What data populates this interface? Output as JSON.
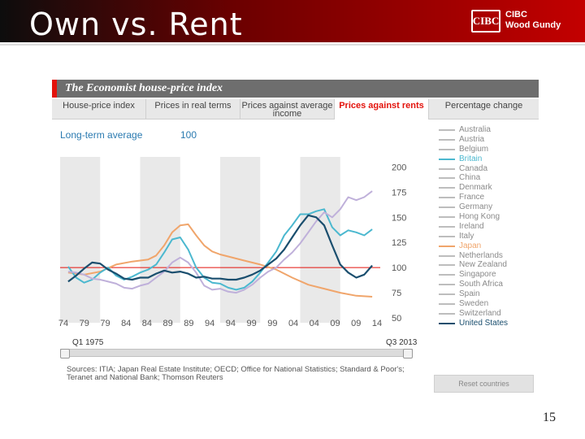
{
  "slide": {
    "title": "Own vs. Rent",
    "logo_mark": "CIBC",
    "logo_line1": "CIBC",
    "logo_line2": "Wood Gundy",
    "page_number": "15"
  },
  "widget": {
    "title": "The Economist house-price index",
    "tabs": [
      {
        "label": "House-price index",
        "active": false
      },
      {
        "label": "Prices in real terms",
        "active": false
      },
      {
        "label": "Prices against average income",
        "active": false
      },
      {
        "label": "Prices against rents",
        "active": true
      },
      {
        "label": "Percentage change",
        "active": false
      }
    ],
    "long_term_label": "Long-term average",
    "long_term_value": "100",
    "timeline_start": "Q1 1975",
    "timeline_end": "Q3 2013",
    "sources": "Sources: ITIA; Japan Real Estate Institute; OECD; Office for National Statistics; Standard & Poor's; Teranet and National Bank; Thomson Reuters",
    "reset_label": "Reset countries",
    "legend": [
      {
        "name": "Australia",
        "color": "#bdbdbd",
        "active": false
      },
      {
        "name": "Austria",
        "color": "#bdbdbd",
        "active": false
      },
      {
        "name": "Belgium",
        "color": "#bdbdbd",
        "active": false
      },
      {
        "name": "Britain",
        "color": "#4bb8cf",
        "active": true
      },
      {
        "name": "Canada",
        "color": "#bdbdbd",
        "active": false
      },
      {
        "name": "China",
        "color": "#bdbdbd",
        "active": false
      },
      {
        "name": "Denmark",
        "color": "#bdbdbd",
        "active": false
      },
      {
        "name": "France",
        "color": "#bdbdbd",
        "active": false
      },
      {
        "name": "Germany",
        "color": "#bdbdbd",
        "active": false
      },
      {
        "name": "Hong Kong",
        "color": "#bdbdbd",
        "active": false
      },
      {
        "name": "Ireland",
        "color": "#bdbdbd",
        "active": false
      },
      {
        "name": "Italy",
        "color": "#bdbdbd",
        "active": false
      },
      {
        "name": "Japan",
        "color": "#f0a56b",
        "active": true
      },
      {
        "name": "Netherlands",
        "color": "#bdbdbd",
        "active": false
      },
      {
        "name": "New Zealand",
        "color": "#bdbdbd",
        "active": false
      },
      {
        "name": "Singapore",
        "color": "#bdbdbd",
        "active": false
      },
      {
        "name": "South Africa",
        "color": "#bdbdbd",
        "active": false
      },
      {
        "name": "Spain",
        "color": "#bdbdbd",
        "active": false
      },
      {
        "name": "Sweden",
        "color": "#bdbdbd",
        "active": false
      },
      {
        "name": "Switzerland",
        "color": "#bdbdbd",
        "active": false
      },
      {
        "name": "United States",
        "color": "#1a4e6e",
        "active": true
      }
    ]
  },
  "chart_data": {
    "type": "line",
    "title": "The Economist house-price index",
    "subtitle": "Prices against rents",
    "xlabel": "",
    "ylabel": "",
    "xlim": [
      1974,
      2014
    ],
    "ylim": [
      50,
      210
    ],
    "y_ticks": [
      50,
      75,
      100,
      125,
      150,
      175,
      200
    ],
    "x_tick_labels": [
      "74",
      "79",
      "79",
      "84",
      "84",
      "89",
      "89",
      "94",
      "94",
      "99",
      "99",
      "04",
      "04",
      "09",
      "09",
      "14"
    ],
    "reference_line": {
      "label": "Long-term average",
      "value": 100,
      "color": "#e3120b"
    },
    "shaded_bands": [
      [
        1974,
        1979
      ],
      [
        1984,
        1989
      ],
      [
        1994,
        1999
      ],
      [
        2004,
        2009
      ]
    ],
    "grid": false,
    "legend_position": "right",
    "series": [
      {
        "name": "Japan",
        "color": "#f0a56b",
        "points": [
          [
            1975,
            95
          ],
          [
            1977,
            93
          ],
          [
            1979,
            96
          ],
          [
            1981,
            103
          ],
          [
            1983,
            106
          ],
          [
            1985,
            108
          ],
          [
            1986,
            112
          ],
          [
            1987,
            122
          ],
          [
            1988,
            135
          ],
          [
            1989,
            142
          ],
          [
            1990,
            143
          ],
          [
            1991,
            132
          ],
          [
            1992,
            122
          ],
          [
            1993,
            116
          ],
          [
            1994,
            113
          ],
          [
            1995,
            111
          ],
          [
            1997,
            107
          ],
          [
            1999,
            103
          ],
          [
            2001,
            98
          ],
          [
            2003,
            90
          ],
          [
            2005,
            83
          ],
          [
            2007,
            79
          ],
          [
            2009,
            75
          ],
          [
            2011,
            72
          ],
          [
            2013,
            71
          ]
        ]
      },
      {
        "name": "Britain",
        "color": "#4bb8cf",
        "points": [
          [
            1975,
            101
          ],
          [
            1976,
            90
          ],
          [
            1977,
            85
          ],
          [
            1978,
            88
          ],
          [
            1979,
            95
          ],
          [
            1980,
            100
          ],
          [
            1981,
            92
          ],
          [
            1982,
            88
          ],
          [
            1983,
            91
          ],
          [
            1984,
            95
          ],
          [
            1985,
            98
          ],
          [
            1986,
            103
          ],
          [
            1987,
            115
          ],
          [
            1988,
            128
          ],
          [
            1989,
            130
          ],
          [
            1990,
            118
          ],
          [
            1991,
            100
          ],
          [
            1992,
            90
          ],
          [
            1993,
            85
          ],
          [
            1994,
            84
          ],
          [
            1995,
            80
          ],
          [
            1996,
            78
          ],
          [
            1997,
            80
          ],
          [
            1998,
            86
          ],
          [
            1999,
            95
          ],
          [
            2000,
            105
          ],
          [
            2001,
            116
          ],
          [
            2002,
            132
          ],
          [
            2003,
            142
          ],
          [
            2004,
            153
          ],
          [
            2005,
            153
          ],
          [
            2006,
            156
          ],
          [
            2007,
            158
          ],
          [
            2008,
            140
          ],
          [
            2009,
            132
          ],
          [
            2010,
            137
          ],
          [
            2011,
            135
          ],
          [
            2012,
            132
          ],
          [
            2013,
            138
          ]
        ]
      },
      {
        "name": "Sweden",
        "color": "#bfb0da",
        "points": [
          [
            1975,
            96
          ],
          [
            1976,
            95
          ],
          [
            1977,
            93
          ],
          [
            1978,
            89
          ],
          [
            1979,
            88
          ],
          [
            1980,
            86
          ],
          [
            1981,
            84
          ],
          [
            1982,
            80
          ],
          [
            1983,
            79
          ],
          [
            1984,
            82
          ],
          [
            1985,
            84
          ],
          [
            1986,
            90
          ],
          [
            1987,
            96
          ],
          [
            1988,
            105
          ],
          [
            1989,
            110
          ],
          [
            1990,
            105
          ],
          [
            1991,
            95
          ],
          [
            1992,
            82
          ],
          [
            1993,
            78
          ],
          [
            1994,
            79
          ],
          [
            1995,
            76
          ],
          [
            1996,
            75
          ],
          [
            1997,
            78
          ],
          [
            1998,
            83
          ],
          [
            1999,
            90
          ],
          [
            2000,
            96
          ],
          [
            2001,
            100
          ],
          [
            2002,
            108
          ],
          [
            2003,
            115
          ],
          [
            2004,
            124
          ],
          [
            2005,
            135
          ],
          [
            2006,
            146
          ],
          [
            2007,
            155
          ],
          [
            2008,
            150
          ],
          [
            2009,
            158
          ],
          [
            2010,
            170
          ],
          [
            2011,
            167
          ],
          [
            2012,
            170
          ],
          [
            2013,
            176
          ]
        ]
      },
      {
        "name": "United States",
        "color": "#1a4e6e",
        "points": [
          [
            1975,
            86
          ],
          [
            1976,
            92
          ],
          [
            1977,
            99
          ],
          [
            1978,
            105
          ],
          [
            1979,
            104
          ],
          [
            1980,
            98
          ],
          [
            1981,
            94
          ],
          [
            1982,
            89
          ],
          [
            1983,
            88
          ],
          [
            1984,
            90
          ],
          [
            1985,
            90
          ],
          [
            1986,
            94
          ],
          [
            1987,
            97
          ],
          [
            1988,
            95
          ],
          [
            1989,
            96
          ],
          [
            1990,
            94
          ],
          [
            1991,
            90
          ],
          [
            1992,
            91
          ],
          [
            1993,
            89
          ],
          [
            1994,
            89
          ],
          [
            1995,
            88
          ],
          [
            1996,
            88
          ],
          [
            1997,
            90
          ],
          [
            1998,
            93
          ],
          [
            1999,
            97
          ],
          [
            2000,
            103
          ],
          [
            2001,
            109
          ],
          [
            2002,
            118
          ],
          [
            2003,
            130
          ],
          [
            2004,
            142
          ],
          [
            2005,
            152
          ],
          [
            2006,
            150
          ],
          [
            2007,
            142
          ],
          [
            2008,
            122
          ],
          [
            2009,
            103
          ],
          [
            2010,
            95
          ],
          [
            2011,
            90
          ],
          [
            2012,
            93
          ],
          [
            2013,
            102
          ]
        ]
      }
    ]
  }
}
